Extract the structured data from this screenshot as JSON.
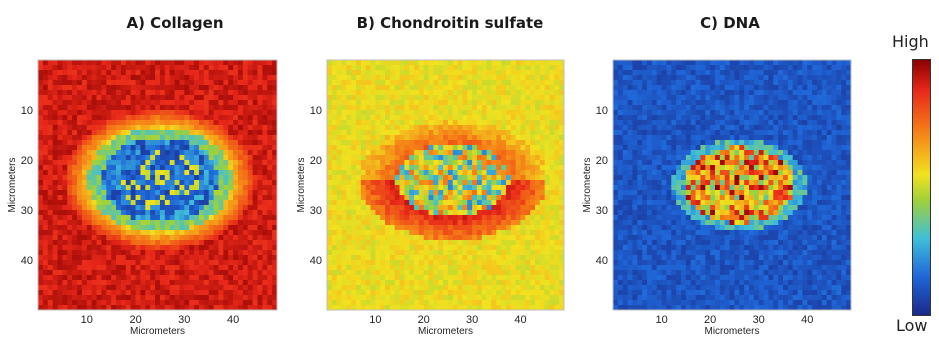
{
  "chart_data": [
    {
      "type": "heatmap",
      "title": "A) Collagen",
      "xlabel": "Micrometers",
      "ylabel": "Micrometers",
      "xlim": [
        0,
        49
      ],
      "ylim": [
        0,
        50
      ],
      "xticks": [
        10,
        20,
        30,
        40
      ],
      "yticks": [
        10,
        20,
        30,
        40
      ],
      "pattern": "high outside, low in central elliptical region",
      "center": [
        25,
        24
      ],
      "radii": [
        14,
        10
      ]
    },
    {
      "type": "heatmap",
      "title": "B) Chondroitin sulfate",
      "xlabel": "Micrometers",
      "ylabel": "Micrometers",
      "xlim": [
        0,
        49
      ],
      "ylim": [
        0,
        50
      ],
      "xticks": [
        10,
        20,
        30,
        40
      ],
      "yticks": [
        10,
        20,
        30,
        40
      ],
      "pattern": "medium (yellow) background, high ring around central region, low/mixed center",
      "center": [
        26,
        24
      ],
      "radii": [
        13,
        8
      ]
    },
    {
      "type": "heatmap",
      "title": "C) DNA",
      "xlabel": "Micrometers",
      "ylabel": "Micrometers",
      "xlim": [
        0,
        49
      ],
      "ylim": [
        0,
        50
      ],
      "xticks": [
        10,
        20,
        30,
        40
      ],
      "yticks": [
        10,
        20,
        30,
        40
      ],
      "pattern": "low background, high values in central region",
      "center": [
        26,
        25
      ],
      "radii": [
        12,
        8
      ]
    }
  ],
  "colorbar": {
    "high_label": "High",
    "low_label": "Low",
    "colors": [
      "#8b0000",
      "#e8281a",
      "#f57f17",
      "#f2e21f",
      "#9fd13a",
      "#3fbfd8",
      "#1f66d8",
      "#1a2a88"
    ]
  }
}
